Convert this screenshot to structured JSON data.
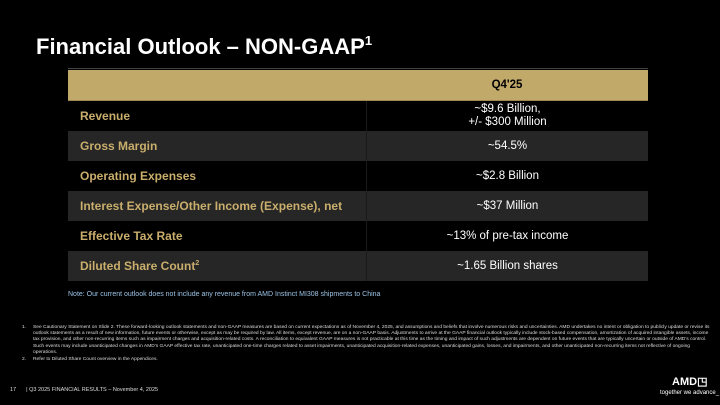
{
  "title": {
    "text": "Financial Outlook – NON-GAAP",
    "superscript": "1"
  },
  "table": {
    "header": "Q4'25",
    "rows": [
      {
        "label": "Revenue",
        "value_lines": [
          "~$9.6 Billion,",
          "+/- $300 Million"
        ]
      },
      {
        "label": "Gross Margin",
        "value_lines": [
          "~54.5%"
        ]
      },
      {
        "label": "Operating Expenses",
        "value_lines": [
          "~$2.8 Billion"
        ]
      },
      {
        "label": "Interest Expense/Other Income (Expense), net",
        "value_lines": [
          "~$37 Million"
        ]
      },
      {
        "label": "Effective Tax Rate",
        "value_lines": [
          "~13% of pre-tax income"
        ]
      },
      {
        "label": "Diluted Share Count",
        "superscript": "2",
        "value_lines": [
          "~1.65 Billion shares"
        ]
      }
    ]
  },
  "note": "Note: Our current outlook does not include any revenue from AMD Instinct MI308 shipments to China",
  "footnotes": [
    {
      "num": "1.",
      "text": "See Cautionary Statement on Slide 2. These forward-looking outlook statements and non-GAAP measures are based on current expectations as of November 4, 2025, and assumptions and beliefs that involve numerous risks and uncertainties. AMD undertakes no intent or obligation to publicly update or revise its outlook statements as a result of new information, future events or otherwise, except as may be required by law. All items, except revenue, are on a non-GAAP basis. Adjustments to arrive at the GAAP financial outlook typically include stock-based compensation, amortization of acquired intangible assets, income tax provision, and other non-recurring items such as impairment charges and acquisition-related costs. A reconciliation to equivalent GAAP measures is not practicable at this time as the timing and impact of such adjustments are dependent on future events that are typically uncertain or outside of AMD's control. Such events may include unanticipated changes in AMD's GAAP effective tax rate, unanticipated one-time charges related to asset impairments, unanticipated acquisition-related expenses, unanticipated gains, losses, and impairments, and other unanticipated non-recurring items not reflective of ongoing operations."
    },
    {
      "num": "2.",
      "text": "Refer to Diluted Share Count overview in the Appendices."
    }
  ],
  "footer": {
    "page": "17",
    "text": "|  Q3 2025 FINANCIAL RESULTS – November 4, 2025"
  },
  "logo": {
    "brand": "AMD",
    "tagline": "together we advance_"
  },
  "colors": {
    "header_bg": "#c1a96a",
    "label": "#c9ae6c",
    "alt_row": "#262626",
    "note": "#9cc3e6"
  }
}
